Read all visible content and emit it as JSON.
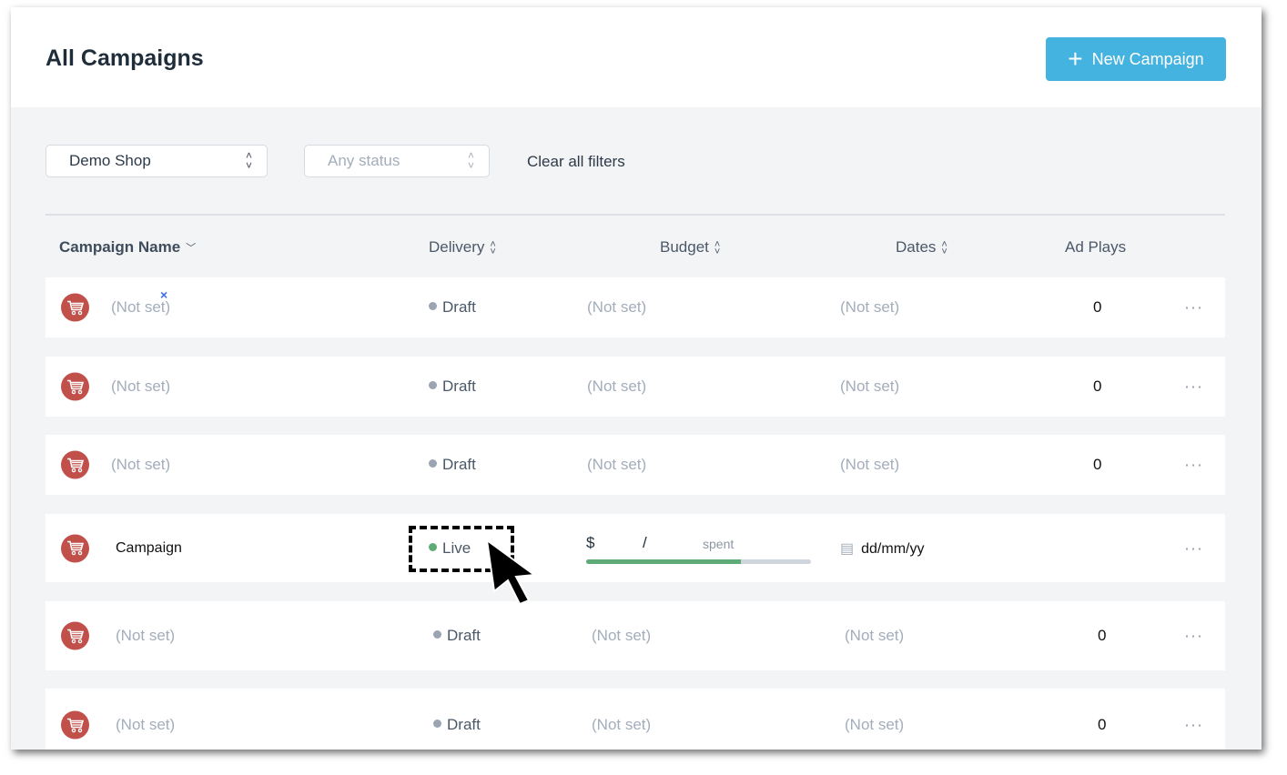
{
  "header": {
    "title": "All Campaigns",
    "new_button": "New Campaign",
    "new_icon": "plus-icon"
  },
  "filters": {
    "shop": "Demo Shop",
    "status_placeholder": "Any status",
    "clear": "Clear all filters"
  },
  "columns": [
    "Campaign Name",
    "Delivery",
    "Budget",
    "Dates",
    "Ad Plays"
  ],
  "rows": [
    {
      "name": "(Not set)",
      "delivery": "Draft",
      "budget": "(Not set)",
      "dates": "(Not set)",
      "plays": "0"
    },
    {
      "name": "(Not set)",
      "delivery": "Draft",
      "budget": "(Not set)",
      "dates": "(Not set)",
      "plays": "0"
    },
    {
      "name": "(Not set)",
      "delivery": "Draft",
      "budget": "(Not set)",
      "dates": "(Not set)",
      "plays": "0"
    },
    {
      "name": "Campaign",
      "delivery": "Live",
      "budget_currency": "$",
      "budget_sep": "/",
      "budget_spent": "spent",
      "budget_progress": 0.69,
      "dates": "dd/mm/yy",
      "plays": ""
    },
    {
      "name": "(Not set)",
      "delivery": "Draft",
      "budget": "(Not set)",
      "dates": "(Not set)",
      "plays": "0"
    },
    {
      "name": "(Not set)",
      "delivery": "Draft",
      "budget": "(Not set)",
      "dates": "(Not set)",
      "plays": "0"
    }
  ],
  "more_label": "···",
  "colors": {
    "accent": "#45b3e0",
    "live": "#5fab78",
    "draft": "#9aa4b2",
    "cart": "#c1504a"
  }
}
